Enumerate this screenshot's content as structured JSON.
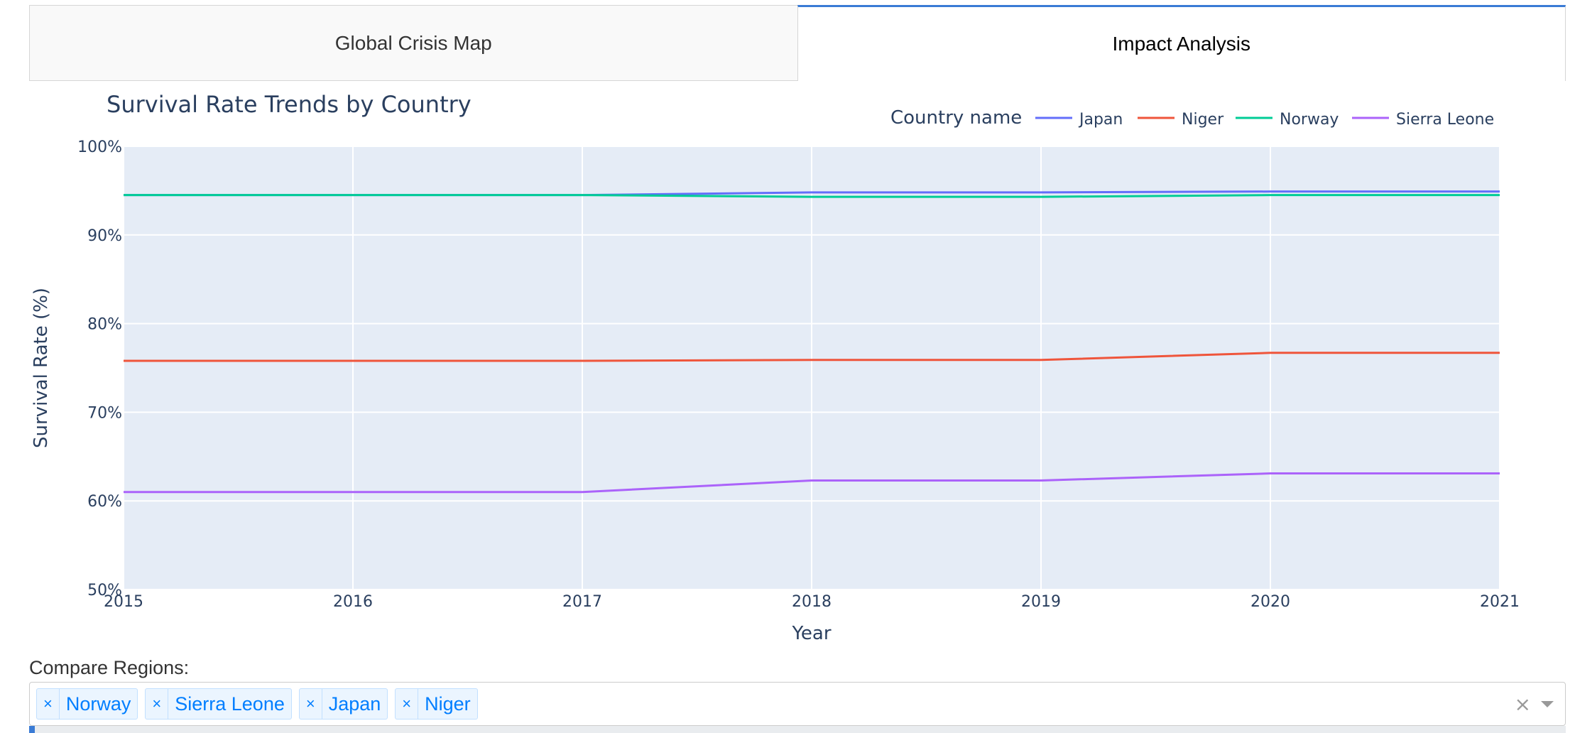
{
  "tabs": [
    {
      "label": "Global Crisis Map",
      "active": false
    },
    {
      "label": "Impact Analysis",
      "active": true
    }
  ],
  "chart_data": {
    "type": "line",
    "title": "Survival Rate Trends by Country",
    "xlabel": "Year",
    "ylabel": "Survival Rate (%)",
    "legend_title": "Country name",
    "legend_position": "top-right",
    "x": [
      2015,
      2016,
      2017,
      2018,
      2019,
      2020,
      2021
    ],
    "xlim": [
      2015,
      2021
    ],
    "ylim": [
      50,
      100
    ],
    "y_ticks": [
      "50%",
      "60%",
      "70%",
      "80%",
      "90%",
      "100%"
    ],
    "x_ticks": [
      "2015",
      "2016",
      "2017",
      "2018",
      "2019",
      "2020",
      "2021"
    ],
    "grid": true,
    "series": [
      {
        "name": "Japan",
        "color": "#636efa",
        "values": [
          94.5,
          94.5,
          94.5,
          94.8,
          94.8,
          94.9,
          94.9
        ]
      },
      {
        "name": "Niger",
        "color": "#EF553B",
        "values": [
          75.8,
          75.8,
          75.8,
          75.9,
          75.9,
          76.7,
          76.7
        ]
      },
      {
        "name": "Norway",
        "color": "#00cc96",
        "values": [
          94.5,
          94.5,
          94.5,
          94.3,
          94.3,
          94.5,
          94.5
        ]
      },
      {
        "name": "Sierra Leone",
        "color": "#ab63fa",
        "values": [
          61.0,
          61.0,
          61.0,
          62.3,
          62.3,
          63.1,
          63.1
        ]
      }
    ]
  },
  "compare": {
    "label": "Compare Regions:",
    "chips": [
      "Norway",
      "Sierra Leone",
      "Japan",
      "Niger"
    ],
    "remove_symbol": "×",
    "clear_symbol": "×"
  }
}
